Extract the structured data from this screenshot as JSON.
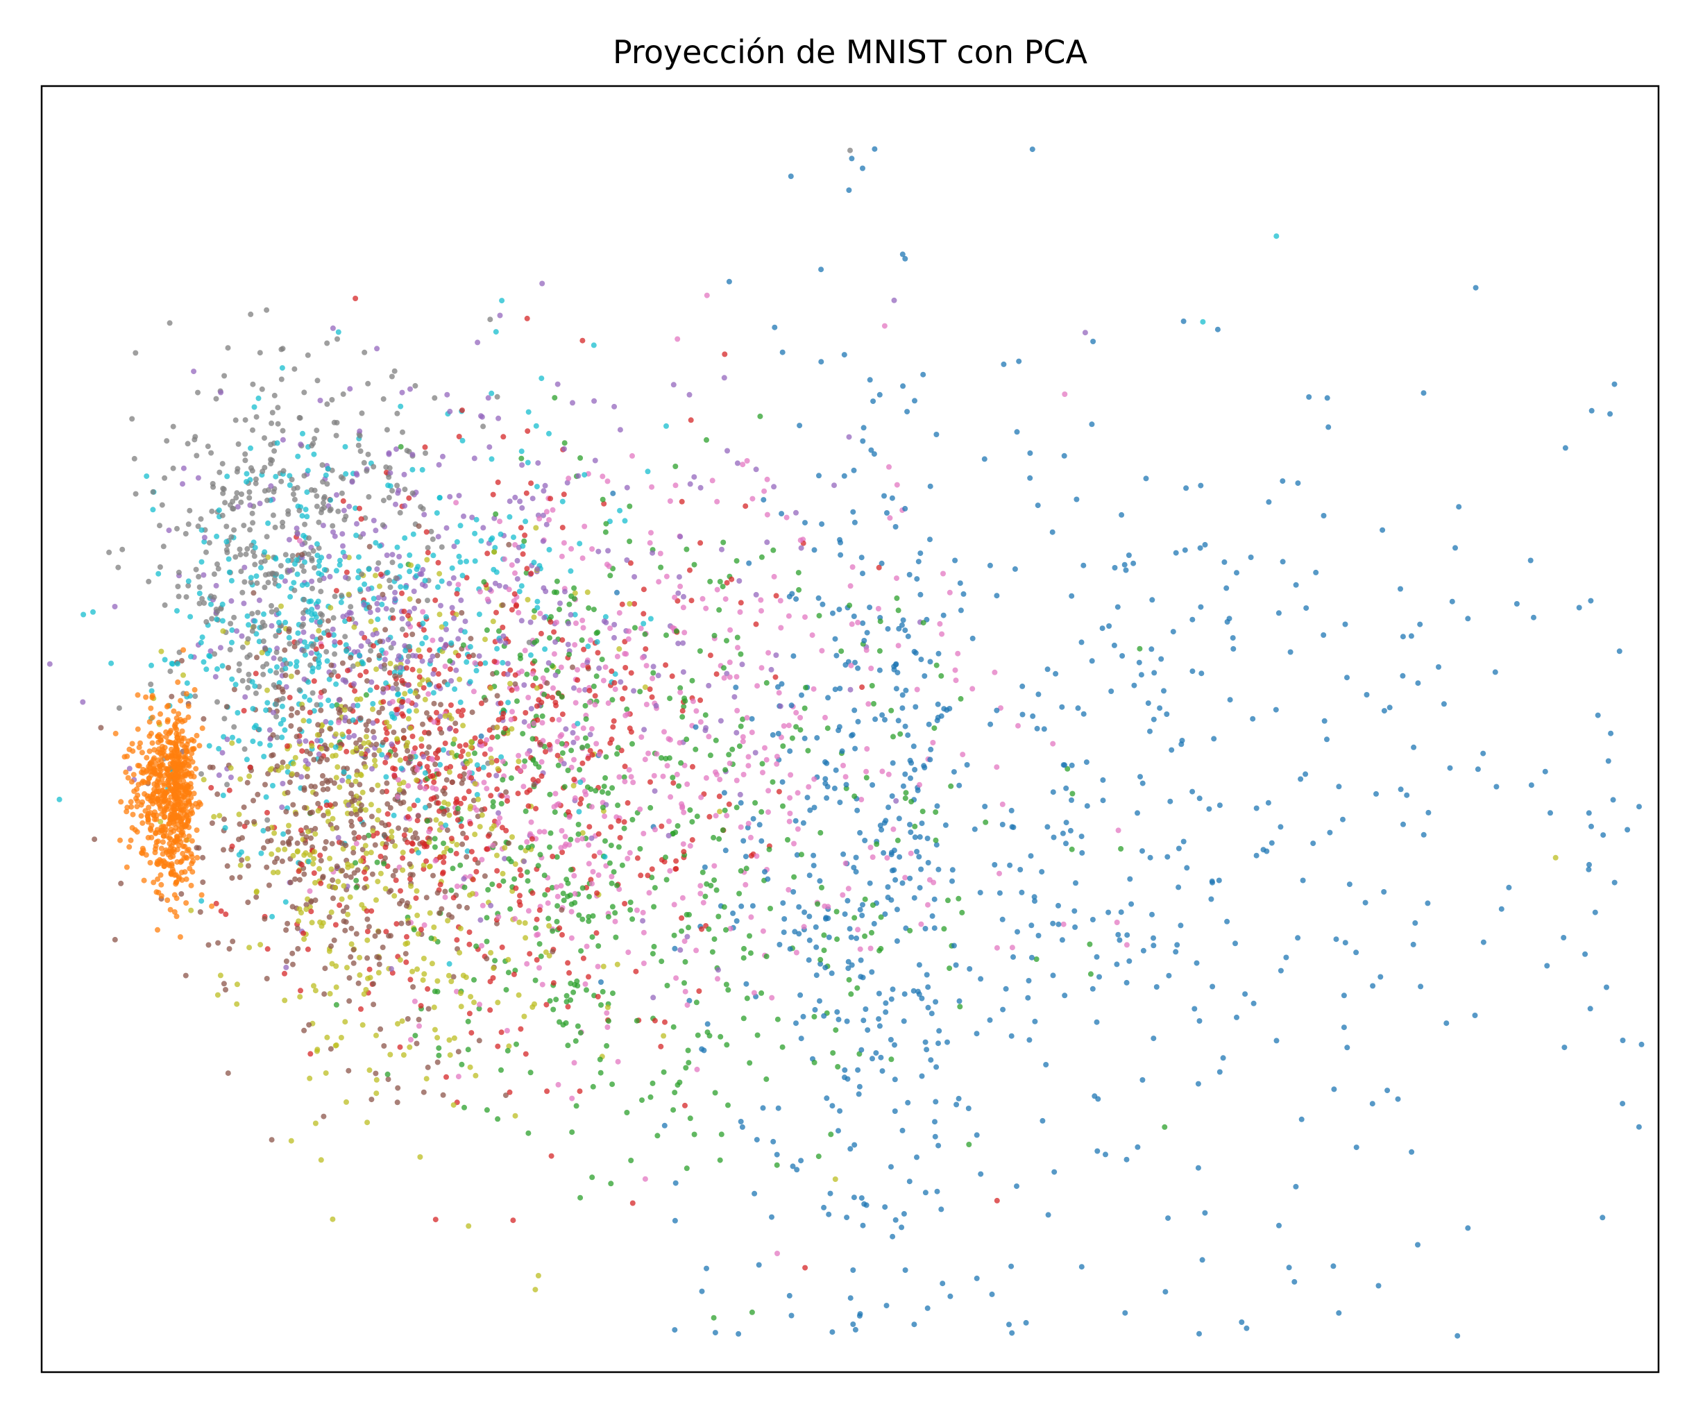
{
  "chart_data": {
    "type": "scatter",
    "title": "Proyección de MNIST con PCA",
    "xlabel": "",
    "ylabel": "",
    "xlim": [
      -5,
      105
    ],
    "ylim": [
      -60,
      60
    ],
    "grid": false,
    "ticks_visible": false,
    "legend": "none",
    "marker_alpha": 0.75,
    "colors": [
      "#1f77b4",
      "#ff7f0e",
      "#2ca02c",
      "#d62728",
      "#9467bd",
      "#8c564b",
      "#e377c2",
      "#7f7f7f",
      "#bcbd22",
      "#17becf"
    ],
    "series": [
      {
        "color": "#1f77b4",
        "count": 820,
        "center": [
          56,
          -10
        ],
        "spread": [
          14,
          22
        ],
        "skew": 1.6
      },
      {
        "color": "#ff7f0e",
        "count": 650,
        "center": [
          4,
          -6
        ],
        "spread": [
          2.5,
          6
        ],
        "skew": 0.3
      },
      {
        "color": "#2ca02c",
        "count": 560,
        "center": [
          34,
          -10
        ],
        "spread": [
          13,
          15
        ],
        "skew": 1.0
      },
      {
        "color": "#d62728",
        "count": 560,
        "center": [
          24,
          -4
        ],
        "spread": [
          12,
          15
        ],
        "skew": 0.8
      },
      {
        "color": "#9467bd",
        "count": 450,
        "center": [
          20,
          10
        ],
        "spread": [
          13,
          14
        ],
        "skew": 0.9
      },
      {
        "color": "#8c564b",
        "count": 480,
        "center": [
          16,
          -8
        ],
        "spread": [
          9,
          12
        ],
        "skew": 0.6
      },
      {
        "color": "#e377c2",
        "count": 520,
        "center": [
          33,
          -2
        ],
        "spread": [
          13,
          13
        ],
        "skew": 1.0
      },
      {
        "color": "#7f7f7f",
        "count": 420,
        "center": [
          11,
          18
        ],
        "spread": [
          7,
          12
        ],
        "skew": 0.8
      },
      {
        "color": "#bcbd22",
        "count": 450,
        "center": [
          18,
          -10
        ],
        "spread": [
          10,
          14
        ],
        "skew": 0.7
      },
      {
        "color": "#17becf",
        "count": 460,
        "center": [
          14,
          10
        ],
        "spread": [
          11,
          12
        ],
        "skew": 0.9
      }
    ],
    "outliers": [
      {
        "x": 50,
        "y": 54,
        "color": "#7f7f7f"
      },
      {
        "x": 79,
        "y": 46,
        "color": "#17becf"
      },
      {
        "x": 53,
        "y": 40,
        "color": "#9467bd"
      },
      {
        "x": 66,
        "y": 37,
        "color": "#9467bd"
      },
      {
        "x": 74,
        "y": 38,
        "color": "#17becf"
      },
      {
        "x": 26,
        "y": 31,
        "color": "#7f7f7f"
      },
      {
        "x": 98,
        "y": -12,
        "color": "#bcbd22"
      },
      {
        "x": 100,
        "y": -21,
        "color": "#1f77b4"
      },
      {
        "x": 60,
        "y": -44,
        "color": "#d62728"
      },
      {
        "x": 49,
        "y": -42,
        "color": "#bcbd22"
      }
    ]
  }
}
